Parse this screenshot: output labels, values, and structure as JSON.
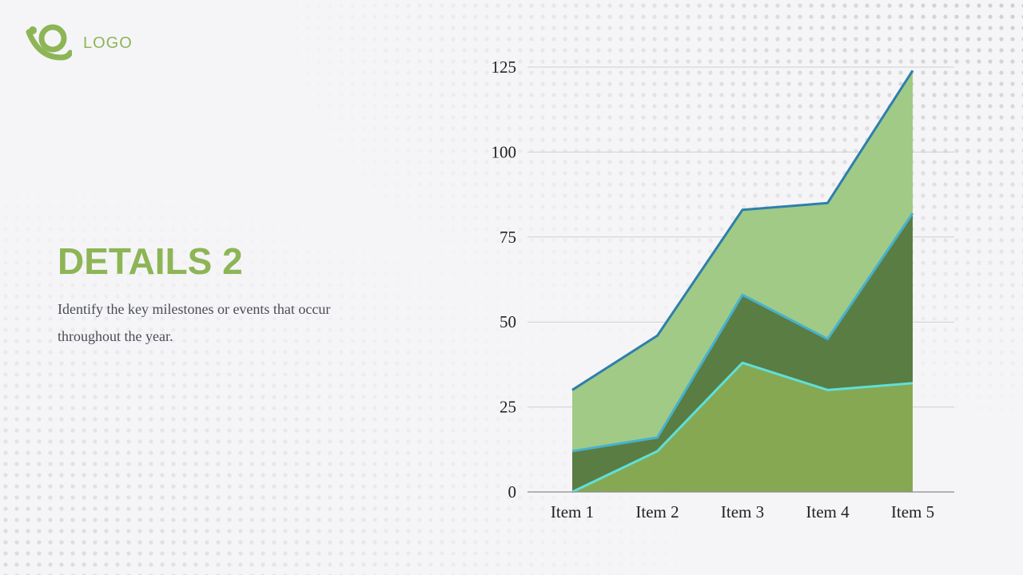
{
  "logo": {
    "text": "LOGO",
    "icon": "logo-swirl-icon",
    "color": "#8db556"
  },
  "slide": {
    "title": "DETAILS 2",
    "description": "Identify the key milestones or events that occur throughout the year."
  },
  "colors": {
    "title": "#8db556",
    "series_fills": [
      "#86a853",
      "#5a7d43",
      "#a1ca86"
    ],
    "series_lines": [
      "#5fe0da",
      "#45b2cf",
      "#2e7fad"
    ]
  },
  "chart_data": {
    "type": "area",
    "categories": [
      "Item 1",
      "Item 2",
      "Item 3",
      "Item 4",
      "Item 5"
    ],
    "series": [
      {
        "values": [
          0,
          12,
          38,
          30,
          32
        ]
      },
      {
        "values": [
          12,
          16,
          58,
          45,
          82
        ]
      },
      {
        "values": [
          30,
          46,
          83,
          85,
          124
        ]
      }
    ],
    "ylim": [
      0,
      125
    ],
    "yticks": [
      "0",
      "25",
      "50",
      "75",
      "100",
      "125"
    ],
    "xlabel": "",
    "ylabel": "",
    "grid": true,
    "legend": "none"
  }
}
